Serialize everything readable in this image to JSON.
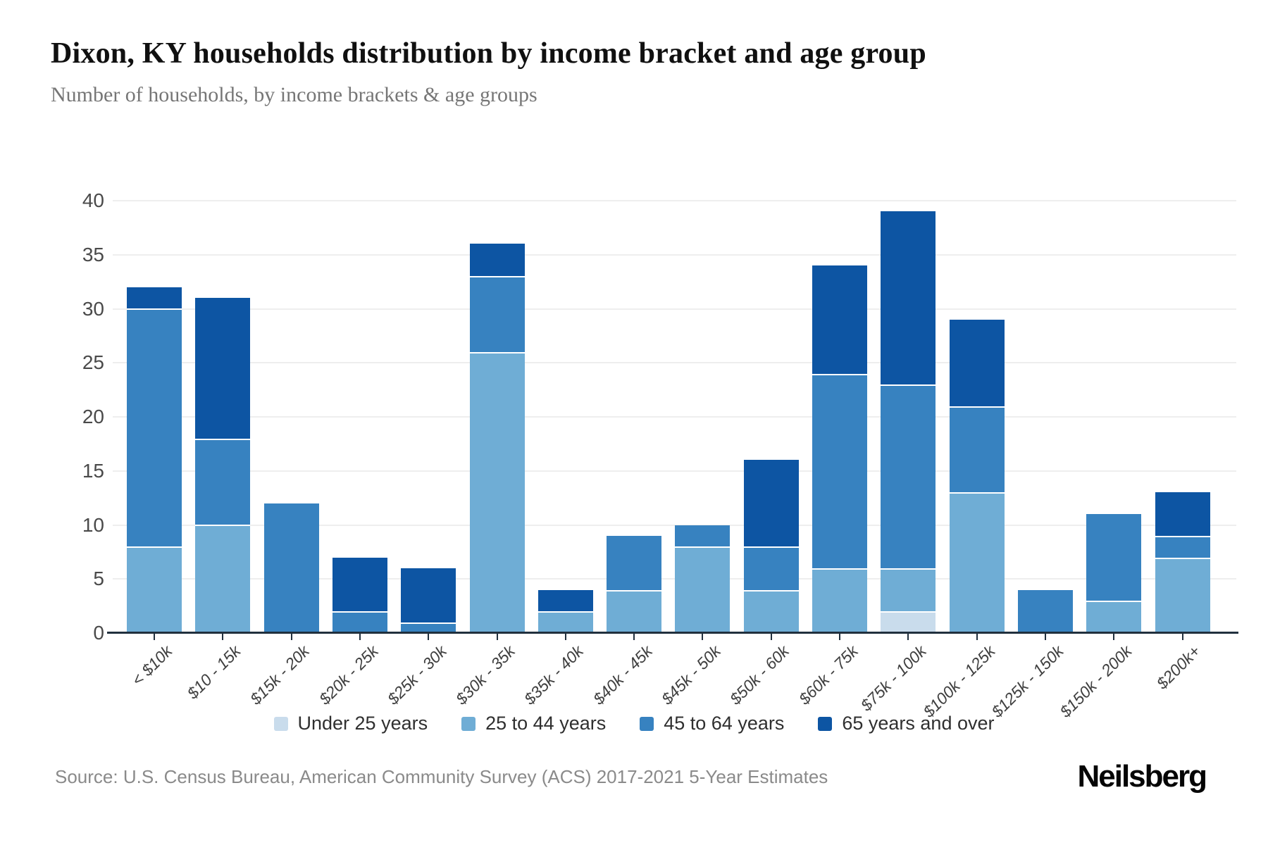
{
  "chart_data": {
    "type": "bar",
    "stacked": true,
    "title": "Dixon, KY households distribution by income bracket and age group",
    "subtitle": "Number of households, by income brackets & age groups",
    "categories": [
      "< $10k",
      "$10 - 15k",
      "$15k - 20k",
      "$20k - 25k",
      "$25k - 30k",
      "$30k - 35k",
      "$35k - 40k",
      "$40k - 45k",
      "$45k - 50k",
      "$50k - 60k",
      "$60k - 75k",
      "$75k - 100k",
      "$100k - 125k",
      "$125k - 150k",
      "$150k - 200k",
      "$200k+"
    ],
    "series": [
      {
        "name": "Under 25 years",
        "color": "#c9dcec",
        "values": [
          0,
          0,
          0,
          0,
          0,
          0,
          0,
          0,
          0,
          0,
          0,
          2,
          0,
          0,
          0,
          0
        ]
      },
      {
        "name": "25 to 44 years",
        "color": "#6fadd5",
        "values": [
          8,
          10,
          0,
          0,
          0,
          26,
          2,
          4,
          8,
          4,
          6,
          4,
          13,
          0,
          3,
          7
        ]
      },
      {
        "name": "45 to 64 years",
        "color": "#3782c0",
        "values": [
          22,
          8,
          12,
          2,
          1,
          7,
          0,
          5,
          2,
          4,
          18,
          17,
          8,
          4,
          8,
          2
        ]
      },
      {
        "name": "65 years and over",
        "color": "#0d55a3",
        "values": [
          2,
          13,
          0,
          5,
          5,
          3,
          2,
          0,
          0,
          8,
          10,
          16,
          8,
          0,
          0,
          4
        ]
      }
    ],
    "totals": [
      32,
      31,
      12,
      7,
      6,
      36,
      4,
      9,
      10,
      16,
      34,
      39,
      29,
      4,
      11,
      13
    ],
    "ylim": [
      0,
      40
    ],
    "yticks": [
      0,
      5,
      10,
      15,
      20,
      25,
      30,
      35,
      40
    ],
    "grid": true,
    "legend_position": "bottom",
    "xlabel": "",
    "ylabel": ""
  },
  "footer": {
    "source": "Source: U.S. Census Bureau, American Community Survey (ACS) 2017-2021 5-Year Estimates",
    "brand": "Neilsberg"
  }
}
